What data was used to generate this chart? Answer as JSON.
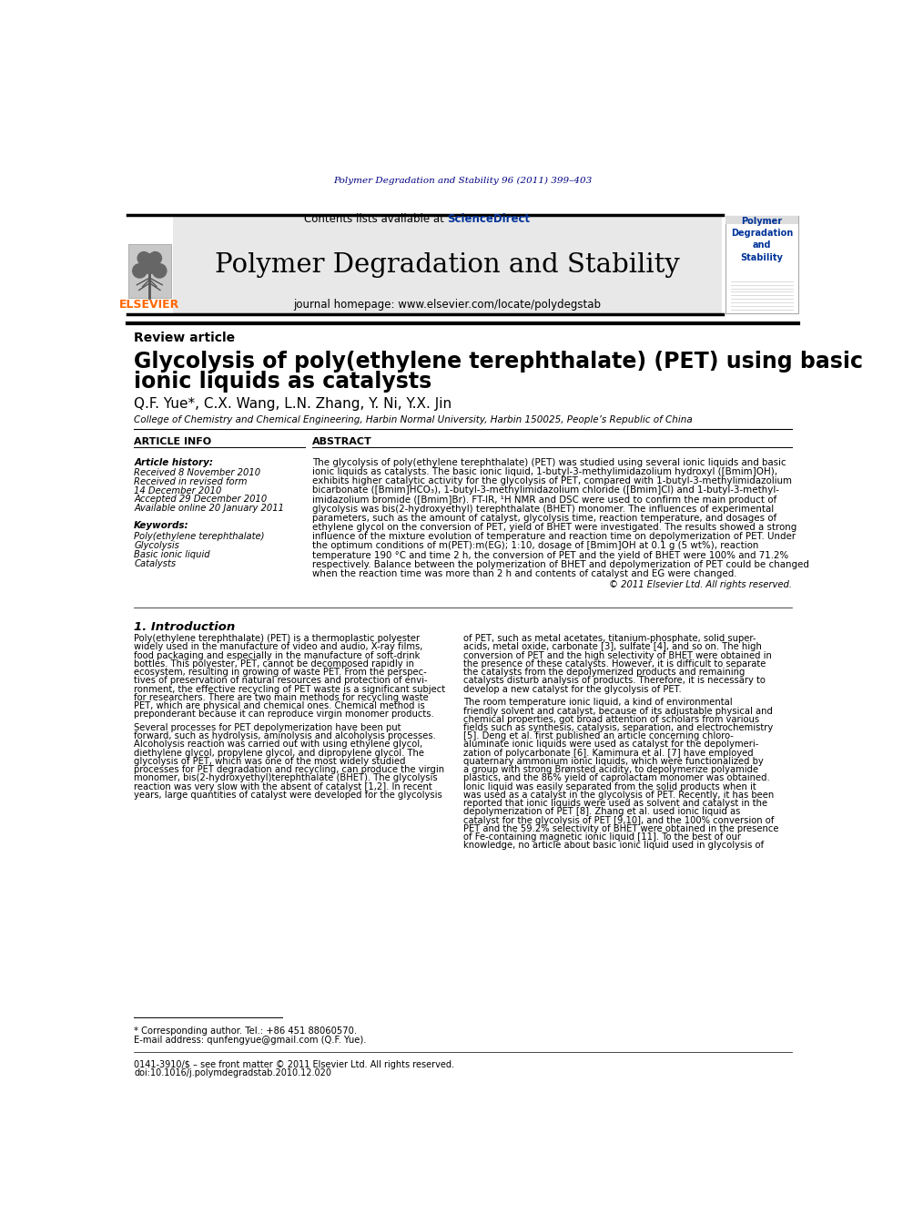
{
  "bg_color": "#ffffff",
  "journal_header_bg": "#e8e8e8",
  "elsevier_orange": "#FF6600",
  "sciencedirect_blue": "#003399",
  "dark_navy": "#000080",
  "top_journal_ref": "Polymer Degradation and Stability 96 (2011) 399–403",
  "journal_name": "Polymer Degradation and Stability",
  "journal_homepage": "journal homepage: www.elsevier.com/locate/polydegstab",
  "contents_text": "Contents lists available at ",
  "sciencedirect_text": "ScienceDirect",
  "article_type": "Review article",
  "paper_title_line1": "Glycolysis of poly(ethylene terephthalate) (PET) using basic",
  "paper_title_line2": "ionic liquids as catalysts",
  "authors": "Q.F. Yue*, C.X. Wang, L.N. Zhang, Y. Ni, Y.X. Jin",
  "affiliation": "College of Chemistry and Chemical Engineering, Harbin Normal University, Harbin 150025, People’s Republic of China",
  "article_info_title": "ARTICLE INFO",
  "abstract_title": "ABSTRACT",
  "article_history_label": "Article history:",
  "received_1": "Received 8 November 2010",
  "received_revised": "Received in revised form",
  "received_revised_date": "14 December 2010",
  "accepted": "Accepted 29 December 2010",
  "available_online": "Available online 20 January 2011",
  "keywords_label": "Keywords:",
  "kw1": "Poly(ethylene terephthalate)",
  "kw2": "Glycolysis",
  "kw3": "Basic ionic liquid",
  "kw4": "Catalysts",
  "abstract_text": "The glycolysis of poly(ethylene terephthalate) (PET) was studied using several ionic liquids and basic\nionic liquids as catalysts. The basic ionic liquid, 1-butyl-3-methylimidazolium hydroxyl ([Bmim]OH),\nexhibits higher catalytic activity for the glycolysis of PET, compared with 1-butyl-3-methylimidazolium\nbicarbonate ([Bmim]HCO₃), 1-butyl-3-methylimidazolium chloride ([Bmim]Cl) and 1-butyl-3-methyl-\nimidazolium bromide ([Bmim]Br). FT-IR, ¹H NMR and DSC were used to confirm the main product of\nglycolysis was bis(2-hydroxyethyl) terephthalate (BHET) monomer. The influences of experimental\nparameters, such as the amount of catalyst, glycolysis time, reaction temperature, and dosages of\nethylene glycol on the conversion of PET, yield of BHET were investigated. The results showed a strong\ninfluence of the mixture evolution of temperature and reaction time on depolymerization of PET. Under\nthe optimum conditions of m(PET):m(EG); 1:10, dosage of [Bmim]OH at 0.1 g (5 wt%), reaction\ntemperature 190 °C and time 2 h, the conversion of PET and the yield of BHET were 100% and 71.2%\nrespectively. Balance between the polymerization of BHET and depolymerization of PET could be changed\nwhen the reaction time was more than 2 h and contents of catalyst and EG were changed.",
  "copyright": "© 2011 Elsevier Ltd. All rights reserved.",
  "intro_title": "1. Introduction",
  "intro_col1_lines": [
    "Poly(ethylene terephthalate) (PET) is a thermoplastic polyester",
    "widely used in the manufacture of video and audio, X-ray films,",
    "food packaging and especially in the manufacture of soft-drink",
    "bottles. This polyester, PET, cannot be decomposed rapidly in",
    "ecosystem, resulting in growing of waste PET. From the perspec-",
    "tives of preservation of natural resources and protection of envi-",
    "ronment, the effective recycling of PET waste is a significant subject",
    "for researchers. There are two main methods for recycling waste",
    "PET, which are physical and chemical ones. Chemical method is",
    "preponderant because it can reproduce virgin monomer products.",
    "",
    "Several processes for PET depolymerization have been put",
    "forward, such as hydrolysis, aminolysis and alcoholysis processes.",
    "Alcoholysis reaction was carried out with using ethylene glycol,",
    "diethylene glycol, propylene glycol, and dipropylene glycol. The",
    "glycolysis of PET, which was one of the most widely studied",
    "processes for PET degradation and recycling, can produce the virgin",
    "monomer, bis(2-hydroxyethyl)terephthalate (BHET). The glycolysis",
    "reaction was very slow with the absent of catalyst [1,2]. In recent",
    "years, large quantities of catalyst were developed for the glycolysis"
  ],
  "intro_col2_lines": [
    "of PET, such as metal acetates, titanium-phosphate, solid super-",
    "acids, metal oxide, carbonate [3], sulfate [4], and so on. The high",
    "conversion of PET and the high selectivity of BHET were obtained in",
    "the presence of these catalysts. However, it is difficult to separate",
    "the catalysts from the depolymerized products and remaining",
    "catalysts disturb analysis of products. Therefore, it is necessary to",
    "develop a new catalyst for the glycolysis of PET.",
    "",
    "The room temperature ionic liquid, a kind of environmental",
    "friendly solvent and catalyst, because of its adjustable physical and",
    "chemical properties, got broad attention of scholars from various",
    "fields such as synthesis, catalysis, separation, and electrochemistry",
    "[5]. Deng et al. first published an article concerning chloro-",
    "aluminate ionic liquids were used as catalyst for the depolymeri-",
    "zation of polycarbonate [6]. Kamimura et al. [7] have employed",
    "quaternary ammonium ionic liquids, which were functionalized by",
    "a group with strong Brønsted acidity, to depolymerize polyamide",
    "plastics, and the 86% yield of caprolactam monomer was obtained.",
    "Ionic liquid was easily separated from the solid products when it",
    "was used as a catalyst in the glycolysis of PET. Recently, it has been",
    "reported that ionic liquids were used as solvent and catalyst in the",
    "depolymerization of PET [8]. Zhang et al. used ionic liquid as",
    "catalyst for the glycolysis of PET [9,10], and the 100% conversion of",
    "PET and the 59.2% selectivity of BHET were obtained in the presence",
    "of Fe-containing magnetic ionic liquid [11]. To the best of our",
    "knowledge, no article about basic ionic liquid used in glycolysis of"
  ],
  "footnote_star": "* Corresponding author. Tel.: +86 451 88060570.",
  "footnote_email": "E-mail address: qunfengyue@gmail.com (Q.F. Yue).",
  "bottom_left": "0141-3910/$ – see front matter © 2011 Elsevier Ltd. All rights reserved.",
  "bottom_doi": "doi:10.1016/j.polymdegradstab.2010.12.020"
}
